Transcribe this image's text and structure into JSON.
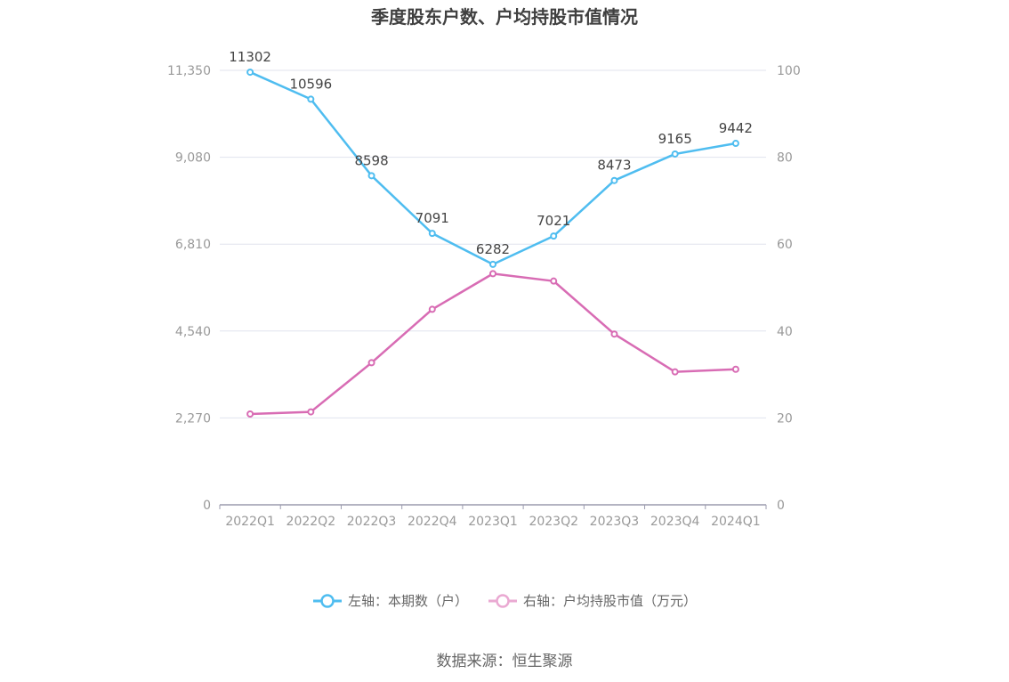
{
  "chart_data": {
    "type": "line",
    "title": "季度股东户数、户均持股市值情况",
    "categories": [
      "2022Q1",
      "2022Q2",
      "2022Q3",
      "2022Q4",
      "2023Q1",
      "2023Q2",
      "2023Q3",
      "2023Q4",
      "2024Q1"
    ],
    "series": [
      {
        "name": "左轴：本期数（户）",
        "axis": "left",
        "color": "#4fbdf0",
        "values": [
          11302,
          10596,
          8598,
          7091,
          6282,
          7021,
          8473,
          9165,
          9442
        ],
        "labels": [
          "11302",
          "10596",
          "8598",
          "7091",
          "6282",
          "7021",
          "8473",
          "9165",
          "9442"
        ]
      },
      {
        "name": "右轴：户均持股市值（万元）",
        "axis": "right",
        "color": "#d86cb4",
        "values": [
          20.9,
          21.4,
          32.7,
          45.0,
          53.2,
          51.5,
          39.3,
          30.6,
          31.2
        ]
      }
    ],
    "left_axis": {
      "ylim": [
        0,
        11350
      ],
      "ticks": [
        0,
        2270,
        4540,
        6810,
        9080,
        11350
      ],
      "tick_labels": [
        "0",
        "2,270",
        "4,540",
        "6,810",
        "9,080",
        "11,350"
      ]
    },
    "right_axis": {
      "ylim": [
        0,
        100
      ],
      "ticks": [
        0,
        20,
        40,
        60,
        80,
        100
      ],
      "tick_labels": [
        "0",
        "20",
        "40",
        "60",
        "80",
        "100"
      ]
    },
    "grid": true,
    "legend_position": "bottom-center",
    "source": "数据来源：恒生聚源"
  }
}
